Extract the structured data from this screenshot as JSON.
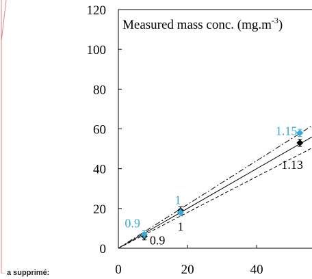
{
  "margin_note": "a supprimé:",
  "colors": {
    "black_series": "#000000",
    "blue_series": "#3aa8d8",
    "frame": "#000000",
    "sidebar_line": "#e08080"
  },
  "chart_data": {
    "type": "scatter",
    "title": "",
    "xlabel": "",
    "ylabel": "Measured mass conc. (mg.m",
    "xlim": [
      0,
      56
    ],
    "ylim": [
      0,
      120
    ],
    "x_ticks": [
      0,
      20,
      40
    ],
    "y_ticks": [
      0,
      20,
      40,
      60,
      80,
      100,
      120
    ],
    "grid": false,
    "series": [
      {
        "marker": "diamond",
        "color": "#000000",
        "points": [
          {
            "x": 7.5,
            "y": 6,
            "label": "0.9"
          },
          {
            "x": 18,
            "y": 19,
            "label": "1"
          },
          {
            "x": 52.5,
            "y": 53,
            "label": "1.13"
          }
        ]
      },
      {
        "marker": "diamond",
        "color": "#3aa8d8",
        "points": [
          {
            "x": 7.5,
            "y": 7,
            "label": "0.9"
          },
          {
            "x": 18,
            "y": 18,
            "label": "1"
          },
          {
            "x": 52.5,
            "y": 58,
            "label": "1.15"
          }
        ]
      }
    ],
    "reference_lines": [
      {
        "style": "solid",
        "slope": 1.0
      },
      {
        "style": "dash-dot",
        "slope": 1.1
      },
      {
        "style": "dashed",
        "slope": 0.9
      }
    ]
  }
}
